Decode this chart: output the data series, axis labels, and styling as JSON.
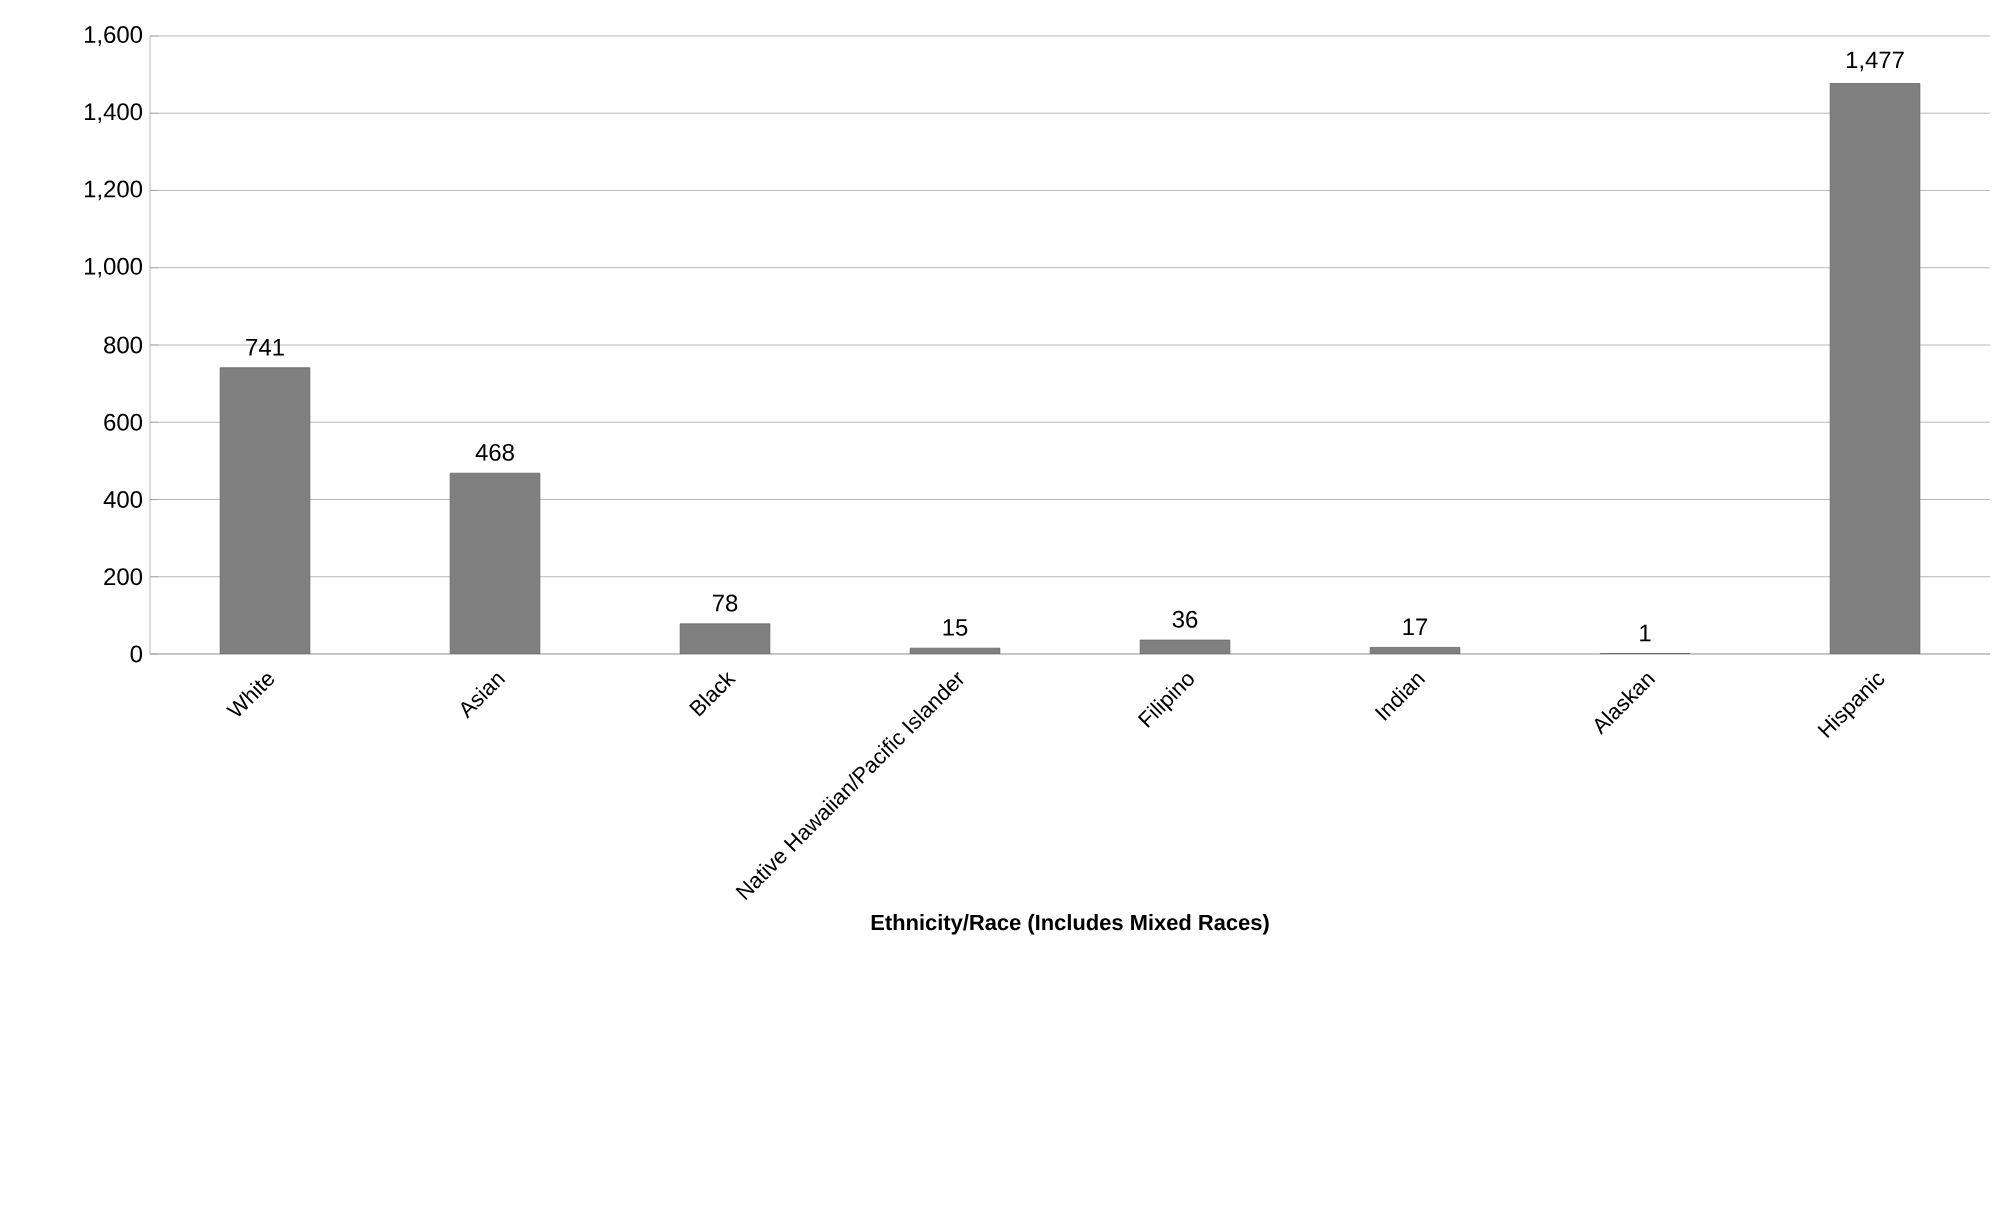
{
  "chart_data": {
    "type": "bar",
    "xlabel": "Ethnicity/Race (Includes Mixed Races)",
    "categories": [
      "White",
      "Asian",
      "Black",
      "Native Hawaiian/Pacific Islander",
      "Filipino",
      "Indian",
      "Alaskan",
      "Hispanic"
    ],
    "values": [
      741,
      468,
      78,
      15,
      36,
      17,
      1,
      1477
    ],
    "color": "#808080",
    "value_labels": [
      "741",
      "468",
      "78",
      "15",
      "36",
      "17",
      "1",
      "1,477"
    ],
    "ylim": [
      0,
      1600
    ],
    "yticks": [
      0,
      {
        "value": 200,
        "label": "200"
      },
      {
        "value": 400,
        "label": "400"
      },
      {
        "value": 600,
        "label": "600"
      },
      {
        "value": 800,
        "label": "800"
      },
      {
        "value": 1000,
        "label": "1,000"
      },
      {
        "value": 1200,
        "label": "1,200"
      },
      {
        "value": 1400,
        "label": "1,400"
      },
      {
        "value": 1600,
        "label": "1,600"
      }
    ],
    "grid": "y"
  }
}
